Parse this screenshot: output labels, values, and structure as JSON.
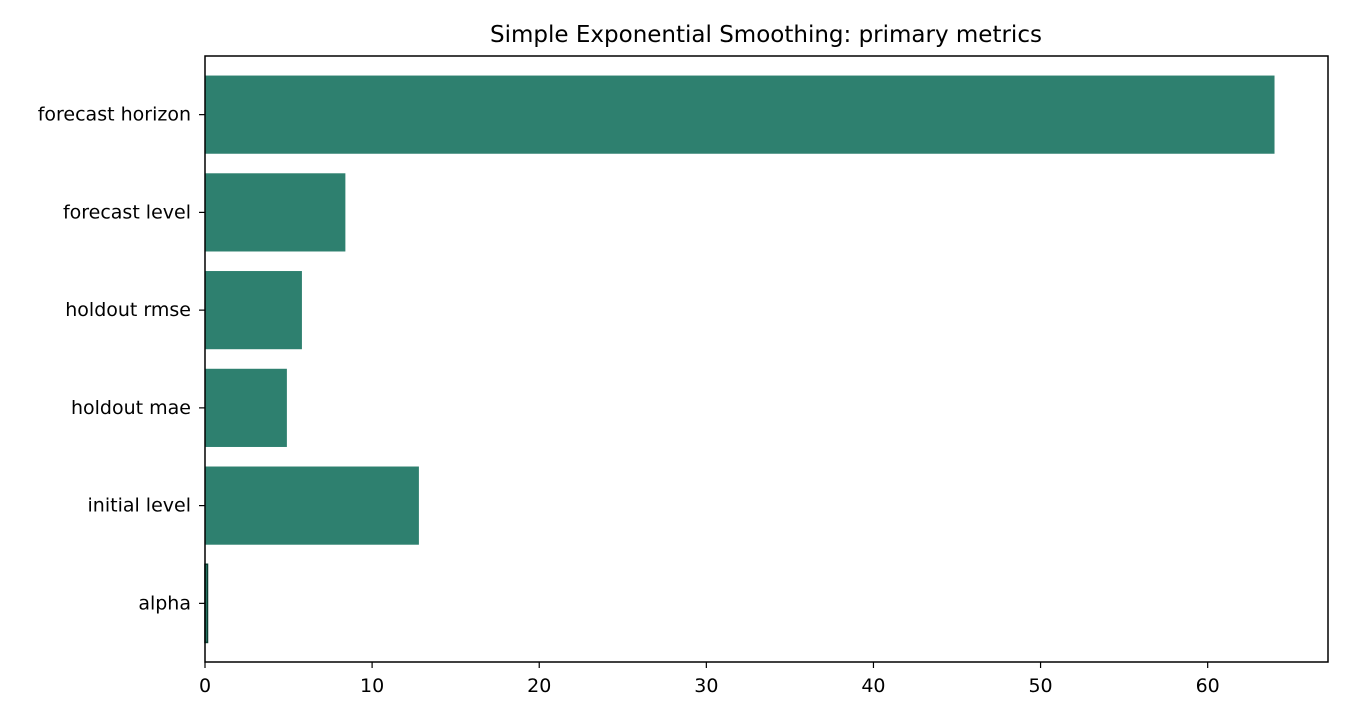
{
  "chart_data": {
    "type": "bar",
    "orientation": "horizontal",
    "title": "Simple Exponential Smoothing: primary metrics",
    "xlabel": "",
    "ylabel": "",
    "categories": [
      "forecast horizon",
      "forecast level",
      "holdout rmse",
      "holdout mae",
      "initial level",
      "alpha"
    ],
    "values": [
      64.0,
      8.4,
      5.8,
      4.9,
      12.8,
      0.15
    ],
    "xlim": [
      0,
      67.2
    ],
    "x_ticks": [
      0,
      10,
      20,
      30,
      40,
      50,
      60
    ],
    "grid": false,
    "legend": "none",
    "bar_color": "#2e806f",
    "edge_color": "#0b3d30"
  }
}
